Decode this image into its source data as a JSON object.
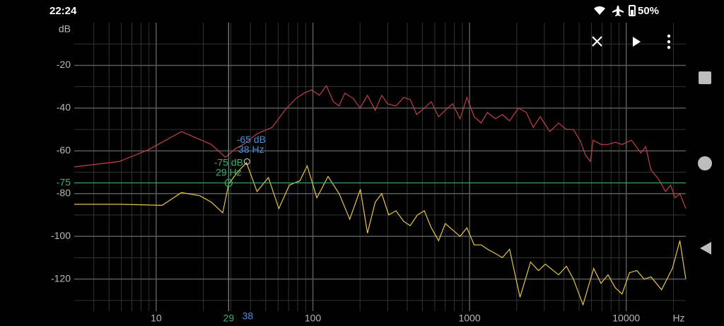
{
  "status_bar": {
    "time": "22:24",
    "battery": "50%"
  },
  "chart_data": {
    "type": "line",
    "x_scale": "log",
    "grid": true,
    "y_unit_label": "dB",
    "x_unit_label": "Hz",
    "xlim": [
      3,
      24000
    ],
    "ylim": [
      -135,
      0
    ],
    "xticks": [
      10,
      100,
      1000,
      10000
    ],
    "yticks": [
      -20,
      -40,
      -60,
      -80,
      -100,
      -120
    ],
    "xgrid": [
      4,
      5,
      6,
      7,
      8,
      9,
      20,
      30,
      40,
      50,
      60,
      70,
      80,
      90,
      200,
      300,
      400,
      500,
      600,
      700,
      800,
      900,
      2000,
      3000,
      4000,
      5000,
      6000,
      7000,
      8000,
      9000,
      20000
    ],
    "ygrid": [
      -10,
      -30,
      -50,
      -70,
      -90,
      -110,
      -130
    ],
    "cursor": {
      "x": 29,
      "y": -75,
      "color": "#3fae6e",
      "labels": [
        "-75 dB",
        "29 Hz"
      ]
    },
    "peak_marker": {
      "x": 38,
      "y": -65,
      "color": "#4a8fd8",
      "labels": [
        "-65 dB",
        "38 Hz"
      ]
    },
    "series": [
      {
        "color": "#c0404a",
        "x": [
          3,
          5.8,
          8.9,
          14.5,
          22.5,
          27.7,
          32,
          36,
          44,
          55,
          67,
          78,
          88,
          98,
          110,
          122,
          135,
          147,
          160,
          181,
          200,
          223,
          250,
          275,
          300,
          339,
          380,
          418,
          460,
          514,
          570,
          634,
          700,
          780,
          870,
          962,
          1070,
          1185,
          1300,
          1460,
          1620,
          1800,
          2050,
          2300,
          2550,
          2830,
          3250,
          3700,
          4150,
          4600,
          5100,
          5500,
          5900,
          6150,
          6900,
          7650,
          8500,
          9400,
          10800,
          12400,
          13300,
          14400,
          16000,
          17800,
          19200,
          20500,
          22000,
          24000
        ],
        "values": [
          -67.5,
          -65,
          -59.5,
          -51,
          -57,
          -63,
          -59,
          -57,
          -52,
          -49,
          -40.5,
          -35.5,
          -33,
          -31.5,
          -34,
          -29.5,
          -37,
          -39,
          -33,
          -35.5,
          -40,
          -34,
          -41,
          -34,
          -38,
          -39,
          -35,
          -36,
          -43,
          -40,
          -37,
          -44,
          -41,
          -38,
          -45,
          -35,
          -44,
          -47,
          -42,
          -45,
          -43,
          -46,
          -40,
          -42,
          -49,
          -44,
          -51,
          -47,
          -50,
          -50,
          -55.5,
          -62,
          -65,
          -55,
          -57,
          -57,
          -56,
          -57,
          -55,
          -61,
          -58,
          -69,
          -73,
          -79,
          -76,
          -82,
          -80,
          -87
        ]
      },
      {
        "color": "#e8c54a",
        "x": [
          3,
          6,
          10.9,
          14.5,
          19,
          22.5,
          26.6,
          29,
          33,
          37.7,
          44,
          52,
          60.7,
          70.8,
          82.7,
          92,
          106,
          125,
          147,
          172,
          201,
          223,
          250,
          275,
          305,
          339,
          380,
          418,
          465,
          514,
          570,
          634,
          700,
          780,
          870,
          962,
          1070,
          1185,
          1300,
          1460,
          1620,
          1800,
          2100,
          2450,
          2750,
          3050,
          3700,
          4150,
          4600,
          5300,
          6200,
          6900,
          7650,
          8500,
          9400,
          10500,
          11700,
          13000,
          14400,
          16800,
          19700,
          22000,
          24000
        ],
        "values": [
          -85,
          -85,
          -85.5,
          -79.5,
          -81,
          -84,
          -89,
          -75.5,
          -70,
          -65.5,
          -79,
          -72.5,
          -87,
          -76,
          -74,
          -67,
          -82,
          -72,
          -80,
          -92,
          -78,
          -98.5,
          -84,
          -80,
          -90,
          -88,
          -93,
          -95,
          -90,
          -88,
          -96,
          -102,
          -94,
          -97,
          -100,
          -96,
          -104,
          -104,
          -106,
          -108,
          -110,
          -106,
          -128.5,
          -112,
          -116,
          -113,
          -118,
          -114,
          -120,
          -132,
          -115,
          -122,
          -118,
          -124,
          -127,
          -117,
          -116,
          -120,
          -119,
          -125,
          -115,
          -102,
          -120
        ]
      }
    ]
  }
}
